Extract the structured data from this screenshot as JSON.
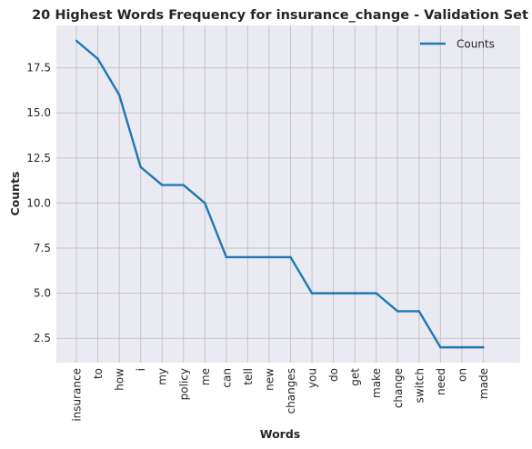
{
  "chart_data": {
    "type": "line",
    "title": "20 Highest Words Frequency for insurance_change - Validation Set",
    "xlabel": "Words",
    "ylabel": "Counts",
    "categories": [
      "insurance",
      "to",
      "how",
      "i",
      "my",
      "policy",
      "me",
      "can",
      "tell",
      "new",
      "changes",
      "you",
      "do",
      "get",
      "make",
      "change",
      "switch",
      "need",
      "on",
      "made"
    ],
    "series": [
      {
        "name": "Counts",
        "values": [
          19,
          18,
          16,
          12,
          11,
          11,
          10,
          7,
          7,
          7,
          7,
          5,
          5,
          5,
          5,
          4,
          4,
          2,
          2,
          2
        ]
      }
    ],
    "ylim": [
      1.15,
      19.85
    ],
    "yticks": [
      2.5,
      5.0,
      7.5,
      10.0,
      12.5,
      15.0,
      17.5
    ],
    "ytick_labels": [
      "2.5",
      "5.0",
      "7.5",
      "10.0",
      "12.5",
      "15.0",
      "17.5"
    ],
    "grid": true,
    "legend": "top-right",
    "colors": {
      "line": "#1f77b4",
      "background": "#eaeaf2",
      "grid": "#c4c4c4"
    }
  }
}
